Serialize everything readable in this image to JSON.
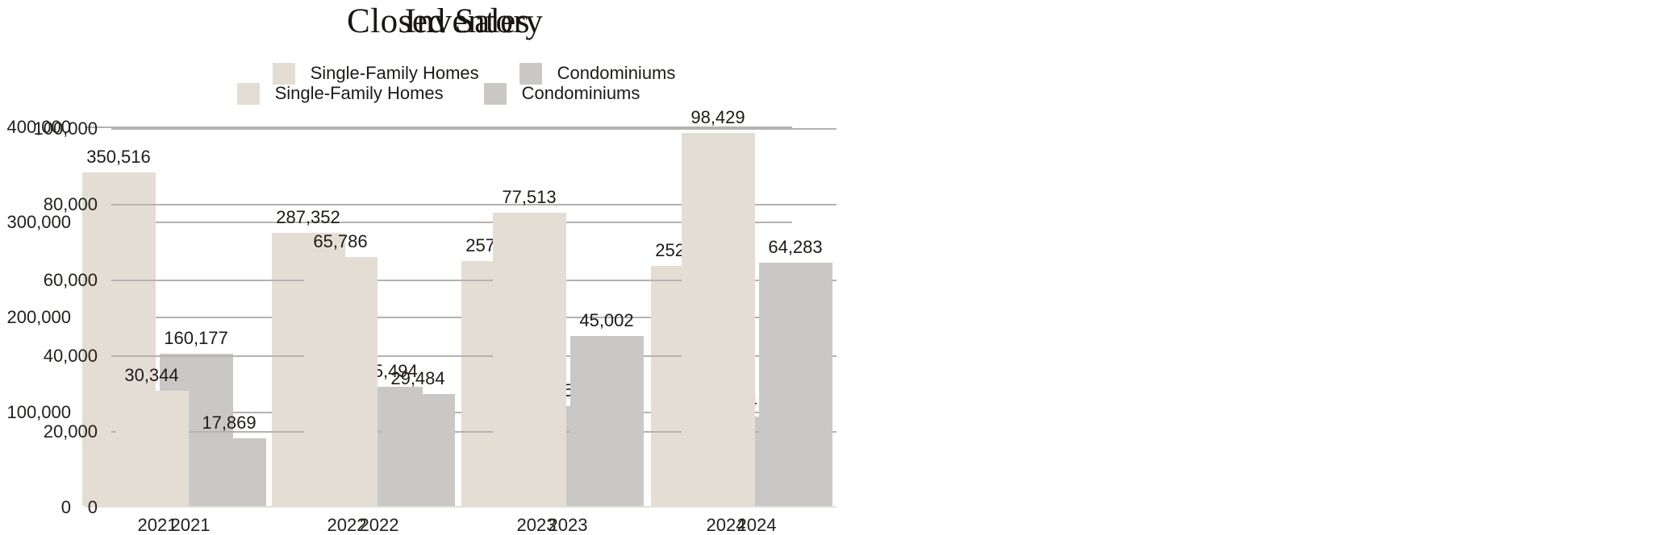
{
  "page": {
    "background": "#ffffff",
    "text_color": "#1d1b18"
  },
  "colors": {
    "single_family_homes": "#e4ddd3",
    "condominiums": "#c9c8c6",
    "gridline": "#b5b2af",
    "axis_line": "#e2e0dd",
    "title_text": "#181512",
    "label_text": "#1d1b18"
  },
  "chart_data": [
    {
      "type": "bar",
      "title": "Closed Sales",
      "categories": [
        "2021",
        "2022",
        "2023",
        "2024"
      ],
      "series": [
        {
          "name": "Single-Family Homes",
          "color": "#e4ddd3",
          "values": [
            350516,
            287352,
            257679,
            252688
          ],
          "value_labels": [
            "350,516",
            "287,352",
            "257,679",
            "252,688"
          ]
        },
        {
          "name": "Condominiums",
          "color": "#c9c8c6",
          "values": [
            160177,
            125494,
            105411,
            94380
          ],
          "value_labels": [
            "160,177",
            "125,494",
            "105,411",
            "94,380"
          ]
        }
      ],
      "ylim": [
        0,
        400000
      ],
      "yticks": [
        0,
        100000,
        200000,
        300000,
        400000
      ],
      "ytick_labels": [
        "0",
        "100,000",
        "200,000",
        "300,000",
        "400,000"
      ],
      "grid": true,
      "legend_position": "top-center"
    },
    {
      "type": "bar",
      "title": "Inventory",
      "categories": [
        "2021",
        "2022",
        "2023",
        "2024"
      ],
      "series": [
        {
          "name": "Single-Family Homes",
          "color": "#e4ddd3",
          "values": [
            30344,
            65786,
            77513,
            98429
          ],
          "value_labels": [
            "30,344",
            "65,786",
            "77,513",
            "98,429"
          ]
        },
        {
          "name": "Condominiums",
          "color": "#c9c8c6",
          "values": [
            17869,
            29484,
            45002,
            64283
          ],
          "value_labels": [
            "17,869",
            "29,484",
            "45,002",
            "64,283"
          ]
        }
      ],
      "ylim": [
        0,
        100000
      ],
      "yticks": [
        0,
        20000,
        40000,
        60000,
        80000,
        100000
      ],
      "ytick_labels": [
        "0",
        "20,000",
        "40,000",
        "60,000",
        "80,000",
        "100,000"
      ],
      "grid": true,
      "legend_position": "top-center"
    }
  ]
}
